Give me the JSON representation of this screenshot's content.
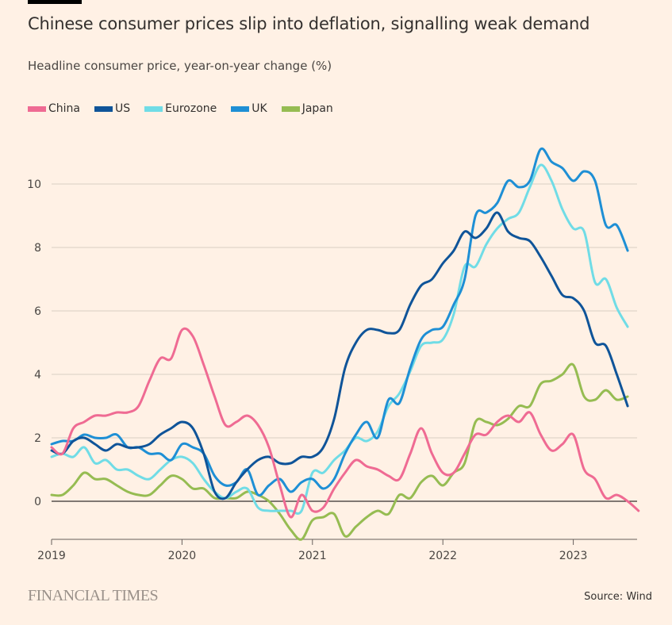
{
  "title": "Chinese consumer prices slip into deflation, signalling weak demand",
  "subtitle": "Headline consumer price, year-on-year change (%)",
  "footer": {
    "brand": "FINANCIAL TIMES",
    "source": "Source: Wind"
  },
  "chart_data": {
    "type": "line",
    "title": "Chinese consumer prices slip into deflation, signalling weak demand",
    "ylabel": "Headline consumer price, year-on-year change (%)",
    "x_start": "2019-01",
    "x_frequency": "monthly",
    "x_ticks": [
      "2019",
      "2020",
      "2021",
      "2022",
      "2023"
    ],
    "y_ticks": [
      "0",
      "2",
      "4",
      "6",
      "8",
      "10"
    ],
    "ylim": [
      -1.2,
      11.2
    ],
    "grid": true,
    "legend": "top-left",
    "series": [
      {
        "name": "China",
        "color": "#ef6b93",
        "values": [
          1.7,
          1.5,
          2.3,
          2.5,
          2.7,
          2.7,
          2.8,
          2.8,
          3.0,
          3.8,
          4.5,
          4.5,
          5.4,
          5.2,
          4.3,
          3.3,
          2.4,
          2.5,
          2.7,
          2.4,
          1.7,
          0.5,
          -0.5,
          0.2,
          -0.3,
          -0.2,
          0.4,
          0.9,
          1.3,
          1.1,
          1.0,
          0.8,
          0.7,
          1.5,
          2.3,
          1.5,
          0.9,
          0.9,
          1.5,
          2.1,
          2.1,
          2.5,
          2.7,
          2.5,
          2.8,
          2.1,
          1.6,
          1.8,
          2.1,
          1.0,
          0.7,
          0.1,
          0.2,
          0.0,
          -0.3
        ]
      },
      {
        "name": "US",
        "color": "#0f5499",
        "values": [
          1.6,
          1.5,
          1.9,
          2.0,
          1.8,
          1.6,
          1.8,
          1.7,
          1.7,
          1.8,
          2.1,
          2.3,
          2.5,
          2.3,
          1.5,
          0.3,
          0.1,
          0.6,
          1.0,
          1.3,
          1.4,
          1.2,
          1.2,
          1.4,
          1.4,
          1.7,
          2.6,
          4.2,
          5.0,
          5.4,
          5.4,
          5.3,
          5.4,
          6.2,
          6.8,
          7.0,
          7.5,
          7.9,
          8.5,
          8.3,
          8.6,
          9.1,
          8.5,
          8.3,
          8.2,
          7.7,
          7.1,
          6.5,
          6.4,
          6.0,
          5.0,
          4.9,
          4.0,
          3.0
        ]
      },
      {
        "name": "Eurozone",
        "color": "#70dce6",
        "values": [
          1.4,
          1.5,
          1.4,
          1.7,
          1.2,
          1.3,
          1.0,
          1.0,
          0.8,
          0.7,
          1.0,
          1.3,
          1.4,
          1.2,
          0.7,
          0.3,
          0.1,
          0.3,
          0.4,
          -0.2,
          -0.3,
          -0.3,
          -0.3,
          -0.3,
          0.9,
          0.9,
          1.3,
          1.6,
          2.0,
          1.9,
          2.2,
          3.0,
          3.4,
          4.1,
          4.9,
          5.0,
          5.1,
          5.9,
          7.4,
          7.4,
          8.1,
          8.6,
          8.9,
          9.1,
          9.9,
          10.6,
          10.1,
          9.2,
          8.6,
          8.5,
          6.9,
          7.0,
          6.1,
          5.5
        ]
      },
      {
        "name": "UK",
        "color": "#1e8fd5",
        "values": [
          1.8,
          1.9,
          1.9,
          2.1,
          2.0,
          2.0,
          2.1,
          1.7,
          1.7,
          1.5,
          1.5,
          1.3,
          1.8,
          1.7,
          1.5,
          0.8,
          0.5,
          0.6,
          1.0,
          0.2,
          0.5,
          0.7,
          0.3,
          0.6,
          0.7,
          0.4,
          0.7,
          1.5,
          2.1,
          2.5,
          2.0,
          3.2,
          3.1,
          4.2,
          5.1,
          5.4,
          5.5,
          6.2,
          7.0,
          9.0,
          9.1,
          9.4,
          10.1,
          9.9,
          10.1,
          11.1,
          10.7,
          10.5,
          10.1,
          10.4,
          10.1,
          8.7,
          8.7,
          7.9
        ]
      },
      {
        "name": "Japan",
        "color": "#96bc52",
        "values": [
          0.2,
          0.2,
          0.5,
          0.9,
          0.7,
          0.7,
          0.5,
          0.3,
          0.2,
          0.2,
          0.5,
          0.8,
          0.7,
          0.4,
          0.4,
          0.1,
          0.1,
          0.1,
          0.3,
          0.2,
          0.0,
          -0.4,
          -0.9,
          -1.2,
          -0.6,
          -0.5,
          -0.4,
          -1.1,
          -0.8,
          -0.5,
          -0.3,
          -0.4,
          0.2,
          0.1,
          0.6,
          0.8,
          0.5,
          0.9,
          1.2,
          2.5,
          2.5,
          2.4,
          2.6,
          3.0,
          3.0,
          3.7,
          3.8,
          4.0,
          4.3,
          3.3,
          3.2,
          3.5,
          3.2,
          3.3
        ]
      }
    ]
  }
}
